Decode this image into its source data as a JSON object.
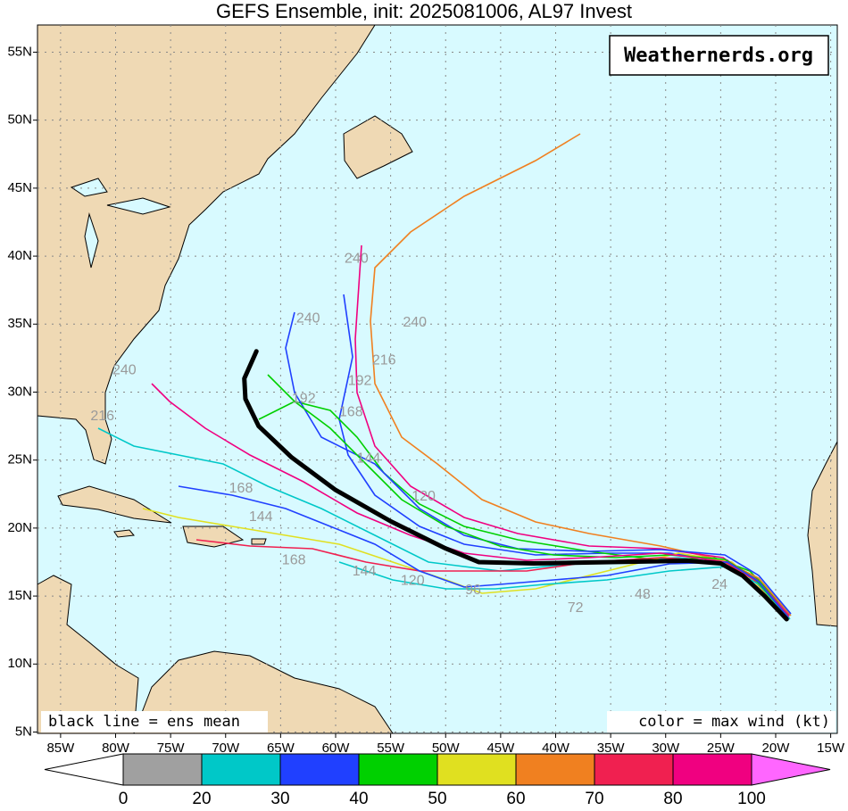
{
  "map": {
    "title": "GEFS Ensemble, init: 2025081006, AL97 Invest",
    "watermark": "Weathernerds.org",
    "mean_note": "black line = ens mean",
    "color_note": "color = max wind (kt)",
    "xlim": [
      -87.1,
      -14.4
    ],
    "ylim": [
      4.9,
      57
    ],
    "xticks": [
      {
        "value": -85,
        "label": "85W"
      },
      {
        "value": -80,
        "label": "80W"
      },
      {
        "value": -75,
        "label": "75W"
      },
      {
        "value": -70,
        "label": "70W"
      },
      {
        "value": -65,
        "label": "65W"
      },
      {
        "value": -60,
        "label": "60W"
      },
      {
        "value": -55,
        "label": "55W"
      },
      {
        "value": -50,
        "label": "50W"
      },
      {
        "value": -45,
        "label": "45W"
      },
      {
        "value": -40,
        "label": "40W"
      },
      {
        "value": -35,
        "label": "35W"
      },
      {
        "value": -30,
        "label": "30W"
      },
      {
        "value": -25,
        "label": "25W"
      },
      {
        "value": -20,
        "label": "20W"
      },
      {
        "value": -15,
        "label": "15W"
      }
    ],
    "yticks": [
      {
        "value": 5,
        "label": "5N"
      },
      {
        "value": 10,
        "label": "10N"
      },
      {
        "value": 15,
        "label": "15N"
      },
      {
        "value": 20,
        "label": "20N"
      },
      {
        "value": 25,
        "label": "25N"
      },
      {
        "value": 30,
        "label": "30N"
      },
      {
        "value": 35,
        "label": "35N"
      },
      {
        "value": 40,
        "label": "40N"
      },
      {
        "value": 45,
        "label": "45N"
      },
      {
        "value": 50,
        "label": "50N"
      },
      {
        "value": 55,
        "label": "55N"
      }
    ],
    "grid": true,
    "mean_track": {
      "color": "#000000",
      "lon": [
        -19,
        -21,
        -23,
        -25,
        -28,
        -35,
        -42,
        -47,
        -50,
        -55,
        -60,
        -64,
        -67,
        -68.2,
        -68.3,
        -67.2
      ],
      "lat": [
        13.3,
        15,
        16.5,
        17.4,
        17.6,
        17.5,
        17.4,
        17.5,
        18.5,
        20.5,
        22.8,
        25.2,
        27.5,
        29.5,
        31,
        33
      ]
    },
    "hour_labels": [
      {
        "text": "240",
        "lon": -58.1,
        "lat": 39.8
      },
      {
        "text": "240",
        "lon": -52.8,
        "lat": 35.1
      },
      {
        "text": "216",
        "lon": -55.6,
        "lat": 32.3
      },
      {
        "text": "192",
        "lon": -57.8,
        "lat": 30.8
      },
      {
        "text": "168",
        "lon": -58.6,
        "lat": 28.5
      },
      {
        "text": "144",
        "lon": -57,
        "lat": 25.1
      },
      {
        "text": "120",
        "lon": -52,
        "lat": 22.3
      },
      {
        "text": "144",
        "lon": -57.4,
        "lat": 16.8
      },
      {
        "text": "120",
        "lon": -53,
        "lat": 16.1
      },
      {
        "text": "96",
        "lon": -47.5,
        "lat": 15.4
      },
      {
        "text": "72",
        "lon": -38.2,
        "lat": 14.1
      },
      {
        "text": "48",
        "lon": -32.1,
        "lat": 15.1
      },
      {
        "text": "24",
        "lon": -25.1,
        "lat": 15.8
      },
      {
        "text": "240",
        "lon": -79.2,
        "lat": 31.6
      },
      {
        "text": "216",
        "lon": -81.2,
        "lat": 28.2
      },
      {
        "text": "168",
        "lon": -68.6,
        "lat": 22.9
      },
      {
        "text": "144",
        "lon": -66.8,
        "lat": 20.8
      },
      {
        "text": "168",
        "lon": -63.8,
        "lat": 17.6
      },
      {
        "text": "240",
        "lon": -62.5,
        "lat": 35.4
      },
      {
        "text": "192",
        "lon": -62.9,
        "lat": 29.5
      }
    ],
    "colorbar": {
      "levels": [
        0,
        20,
        30,
        40,
        50,
        60,
        70,
        80,
        100
      ],
      "colors": [
        "#a0a0a0",
        "#00c8c8",
        "#2040ff",
        "#00d000",
        "#e0e020",
        "#f08020",
        "#f02050",
        "#f00080"
      ],
      "under_color": "#ffffff",
      "over_color": "#ff66ff"
    }
  }
}
